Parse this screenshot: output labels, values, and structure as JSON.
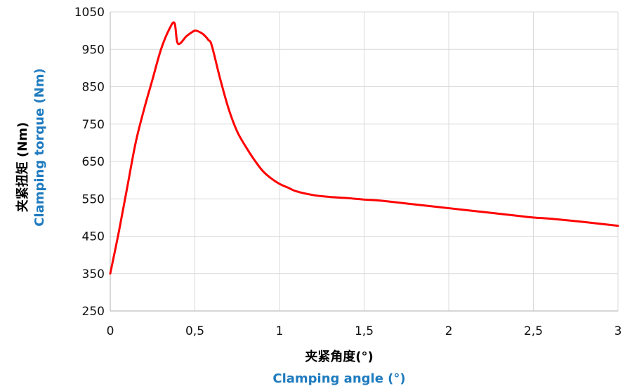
{
  "chart_data": {
    "type": "line",
    "ylabel_cn": "夹紧扭矩 (Nm)",
    "ylabel_en": "Clamping torque (Nm)",
    "xlabel_cn": "夹紧角度(°)",
    "xlabel_en": "Clamping angle (°)",
    "xlim": [
      0,
      3
    ],
    "ylim": [
      250,
      1050
    ],
    "x_ticks": [
      "0",
      "0,5",
      "1",
      "1,5",
      "2",
      "2,5",
      "3"
    ],
    "y_ticks": [
      "250",
      "350",
      "450",
      "550",
      "650",
      "750",
      "850",
      "950",
      "1050"
    ],
    "grid": true,
    "legend": "none",
    "colors": {
      "line": "#ff0000",
      "english_label": "#1f7bbf",
      "grid": "#d9d9d9",
      "axis": "#bfbfbf"
    },
    "series": [
      {
        "x": [
          0,
          0.05,
          0.1,
          0.15,
          0.2,
          0.25,
          0.3,
          0.35,
          0.38,
          0.4,
          0.45,
          0.48,
          0.5,
          0.52,
          0.55,
          0.58,
          0.6,
          0.65,
          0.7,
          0.75,
          0.8,
          0.85,
          0.9,
          0.95,
          1.0,
          1.05,
          1.1,
          1.2,
          1.3,
          1.4,
          1.5,
          1.6,
          1.8,
          2.0,
          2.2,
          2.4,
          2.5,
          2.6,
          2.8,
          3.0
        ],
        "y": [
          350,
          460,
          580,
          700,
          790,
          870,
          950,
          1005,
          1020,
          965,
          985,
          995,
          1000,
          998,
          990,
          975,
          960,
          870,
          790,
          730,
          690,
          655,
          625,
          605,
          590,
          580,
          570,
          560,
          555,
          552,
          548,
          545,
          535,
          525,
          515,
          505,
          500,
          497,
          488,
          478
        ]
      }
    ]
  }
}
